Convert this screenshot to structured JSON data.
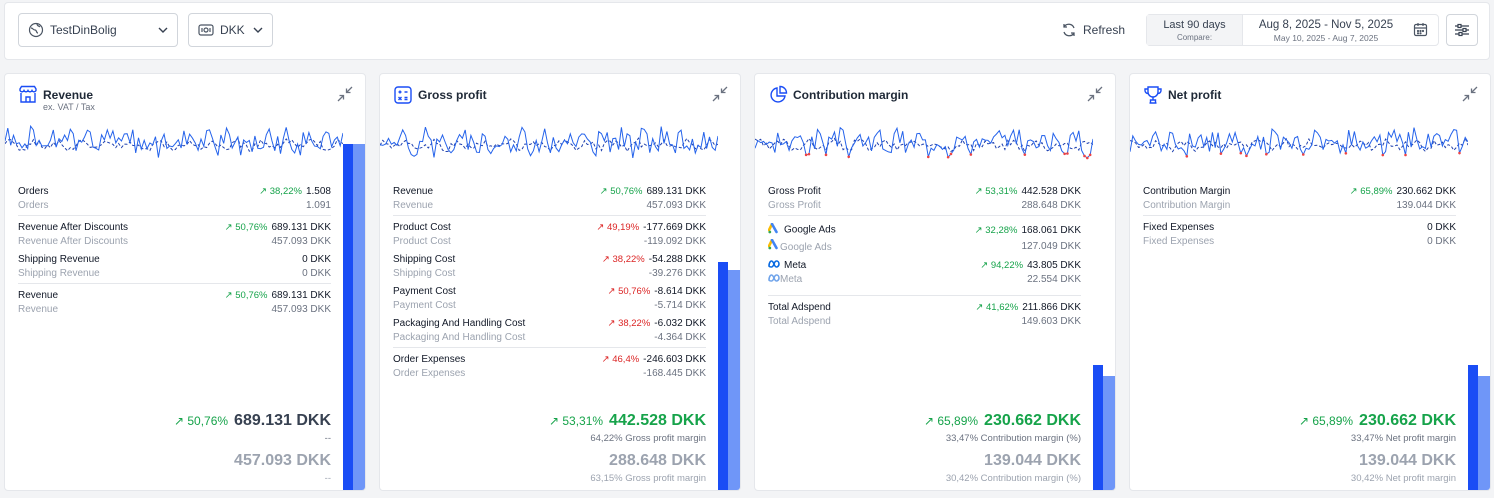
{
  "topbar": {
    "account": "TestDinBolig",
    "currency": "DKK",
    "refresh_label": "Refresh",
    "preset_label": "Last 90 days",
    "compare_label": "Compare:",
    "date_range": "Aug 8, 2025 - Nov 5, 2025",
    "compare_range": "May 10, 2025 - Aug 7, 2025"
  },
  "colors": {
    "accent": "#1a4df5",
    "accent_light": "#6f96f8",
    "positive": "#16a34a",
    "negative": "#dc2626"
  },
  "cards": {
    "revenue": {
      "title": "Revenue",
      "subtitle": "ex. VAT / Tax",
      "rows": {
        "orders": {
          "label": "Orders",
          "prev_label": "Orders",
          "change": "38,22%",
          "value": "1.508",
          "prev_value": "1.091"
        },
        "after_discounts": {
          "label": "Revenue After Discounts",
          "prev_label": "Revenue After Discounts",
          "change": "50,76%",
          "value": "689.131 DKK",
          "prev_value": "457.093 DKK"
        },
        "shipping": {
          "label": "Shipping Revenue",
          "prev_label": "Shipping Revenue",
          "value": "0 DKK",
          "prev_value": "0 DKK"
        },
        "total": {
          "label": "Revenue",
          "prev_label": "Revenue",
          "change": "50,76%",
          "value": "689.131 DKK",
          "prev_value": "457.093 DKK"
        }
      },
      "summary": {
        "change": "50,76%",
        "value": "689.131 DKK",
        "note": "--",
        "prev_value": "457.093 DKK",
        "prev_note": "--"
      },
      "bar_current": 0.91,
      "bar_previous": 0.91
    },
    "gross_profit": {
      "title": "Gross profit",
      "rows": {
        "revenue": {
          "label": "Revenue",
          "prev_label": "Revenue",
          "change": "50,76%",
          "value": "689.131 DKK",
          "prev_value": "457.093 DKK"
        },
        "product_cost": {
          "label": "Product Cost",
          "prev_label": "Product Cost",
          "change": "49,19%",
          "value": "-177.669 DKK",
          "prev_value": "-119.092 DKK"
        },
        "shipping_cost": {
          "label": "Shipping Cost",
          "prev_label": "Shipping Cost",
          "change": "38,22%",
          "value": "-54.288 DKK",
          "prev_value": "-39.276 DKK"
        },
        "payment_cost": {
          "label": "Payment Cost",
          "prev_label": "Payment Cost",
          "change": "50,76%",
          "value": "-8.614 DKK",
          "prev_value": "-5.714 DKK"
        },
        "packaging_cost": {
          "label": "Packaging And Handling Cost",
          "prev_label": "Packaging And Handling Cost",
          "change": "38,22%",
          "value": "-6.032 DKK",
          "prev_value": "-4.364 DKK"
        },
        "order_expenses": {
          "label": "Order Expenses",
          "prev_label": "Order Expenses",
          "change": "46,4%",
          "value": "-246.603 DKK",
          "prev_value": "-168.445 DKK"
        }
      },
      "summary": {
        "change": "53,31%",
        "value": "442.528 DKK",
        "note": "64,22% Gross profit margin",
        "prev_value": "288.648 DKK",
        "prev_note": "63,15% Gross profit margin"
      },
      "bar_current": 0.6,
      "bar_previous": 0.58
    },
    "contribution_margin": {
      "title": "Contribution margin",
      "rows": {
        "gross_profit": {
          "label": "Gross Profit",
          "prev_label": "Gross Profit",
          "change": "53,31%",
          "value": "442.528 DKK",
          "prev_value": "288.648 DKK"
        },
        "google_ads": {
          "label": "Google Ads",
          "prev_label": "Google Ads",
          "change": "32,28%",
          "value": "168.061 DKK",
          "prev_value": "127.049 DKK"
        },
        "meta": {
          "label": "Meta",
          "prev_label": "Meta",
          "change": "94,22%",
          "value": "43.805 DKK",
          "prev_value": "22.554 DKK"
        },
        "total_adspend": {
          "label": "Total Adspend",
          "prev_label": "Total Adspend",
          "change": "41,62%",
          "value": "211.866 DKK",
          "prev_value": "149.603 DKK"
        }
      },
      "summary": {
        "change": "65,89%",
        "value": "230.662 DKK",
        "note": "33,47% Contribution margin (%)",
        "prev_value": "139.044 DKK",
        "prev_note": "30,42% Contribution margin (%)"
      },
      "bar_current": 0.33,
      "bar_previous": 0.3
    },
    "net_profit": {
      "title": "Net profit",
      "rows": {
        "contribution_margin": {
          "label": "Contribution Margin",
          "prev_label": "Contribution Margin",
          "change": "65,89%",
          "value": "230.662 DKK",
          "prev_value": "139.044 DKK"
        },
        "fixed_expenses": {
          "label": "Fixed Expenses",
          "prev_label": "Fixed Expenses",
          "value": "0 DKK",
          "prev_value": "0 DKK"
        }
      },
      "summary": {
        "change": "65,89%",
        "value": "230.662 DKK",
        "note": "33,47% Net profit margin",
        "prev_value": "139.044 DKK",
        "prev_note": "30,42% Net profit margin"
      },
      "bar_current": 0.33,
      "bar_previous": 0.3
    }
  },
  "icons": {
    "account": "globe-icon",
    "currency": "banknote-icon",
    "refresh": "refresh-icon",
    "calendar": "calendar-icon",
    "filters": "sliders-icon",
    "revenue": "store-icon",
    "gross_profit": "calculator-icon",
    "contribution_margin": "pie-chart-icon",
    "net_profit": "trophy-icon",
    "collapse": "minimize-icon",
    "trend_up": "arrow-up-right-icon",
    "google_ads": "google-ads-icon",
    "meta": "meta-icon"
  }
}
